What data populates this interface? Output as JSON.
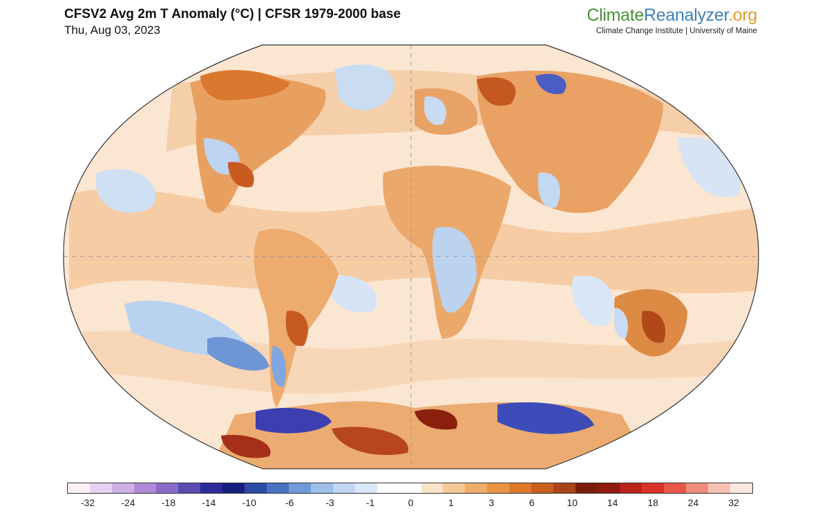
{
  "header": {
    "title": "CFSV2 Avg 2m T Anomaly (°C) | CFSR 1979-2000 base",
    "date": "Thu, Aug 03, 2023"
  },
  "brand": {
    "name_part1": "Climate",
    "name_part2": "Reanalyzer",
    "name_part3": ".org",
    "subtitle": "Climate Change Institute | University of Maine"
  },
  "colors": {
    "brand_green": "#4a8f3a",
    "brand_blue": "#3f7fb7",
    "brand_orange": "#e39a2b",
    "ocean_neutral": "#fbe8d6"
  },
  "colorbar": {
    "swatches": [
      "#fdf0f4",
      "#e8d0ef",
      "#cdb0e6",
      "#b08ad8",
      "#8a6ac8",
      "#5c4ab0",
      "#2b2c9a",
      "#18207d",
      "#2c4aa3",
      "#4672c0",
      "#6f9bd8",
      "#9dc0ea",
      "#c0d8f4",
      "#dbe8f8",
      "#ffffff",
      "#ffffff",
      "#fbe3c8",
      "#f6c898",
      "#efad6a",
      "#e79445",
      "#dd7a2a",
      "#c9601f",
      "#a84518",
      "#7a1d0d",
      "#901a10",
      "#b8231a",
      "#d83324",
      "#e8584a",
      "#f08c7c",
      "#f6c0b3",
      "#fce6e0"
    ],
    "labels": [
      "-32",
      "-24",
      "-18",
      "-14",
      "-10",
      "-6",
      "-3",
      "-1",
      "0",
      "1",
      "3",
      "6",
      "10",
      "14",
      "18",
      "24",
      "32"
    ]
  }
}
